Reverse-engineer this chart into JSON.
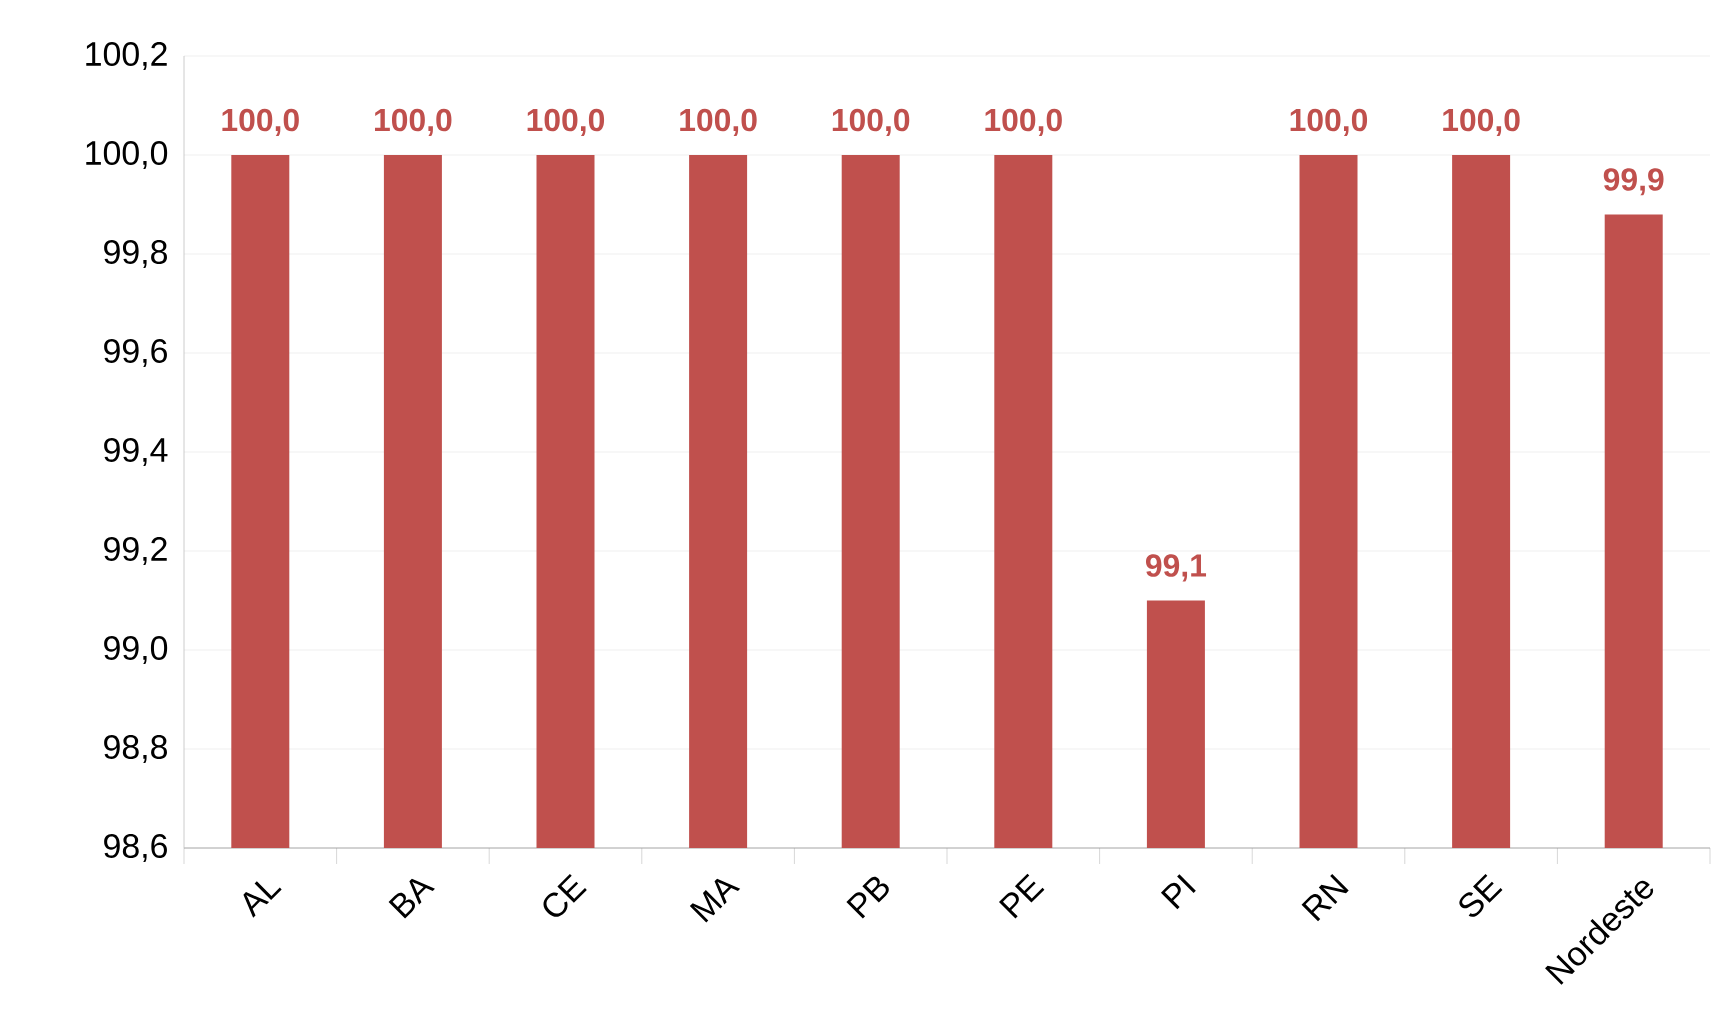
{
  "chart_data": {
    "type": "bar",
    "categories": [
      "AL",
      "BA",
      "CE",
      "MA",
      "PB",
      "PE",
      "PI",
      "RN",
      "SE",
      "Nordeste"
    ],
    "values": [
      100.0,
      100.0,
      100.0,
      100.0,
      100.0,
      100.0,
      99.1,
      100.0,
      100.0,
      99.88
    ],
    "value_labels": [
      "100,0",
      "100,0",
      "100,0",
      "100,0",
      "100,0",
      "100,0",
      "99,1",
      "100,0",
      "100,0",
      "99,9"
    ],
    "color": "#c0504d",
    "ylim": [
      98.6,
      100.2
    ],
    "yticks": [
      {
        "value": 98.6,
        "label": "98,6"
      },
      {
        "value": 98.8,
        "label": "98,8"
      },
      {
        "value": 99.0,
        "label": "99,0"
      },
      {
        "value": 99.2,
        "label": "99,2"
      },
      {
        "value": 99.4,
        "label": "99,4"
      },
      {
        "value": 99.6,
        "label": "99,6"
      },
      {
        "value": 99.8,
        "label": "99,8"
      },
      {
        "value": 100.0,
        "label": "100,0"
      },
      {
        "value": 100.2,
        "label": "100,2"
      }
    ],
    "grid": "y"
  }
}
